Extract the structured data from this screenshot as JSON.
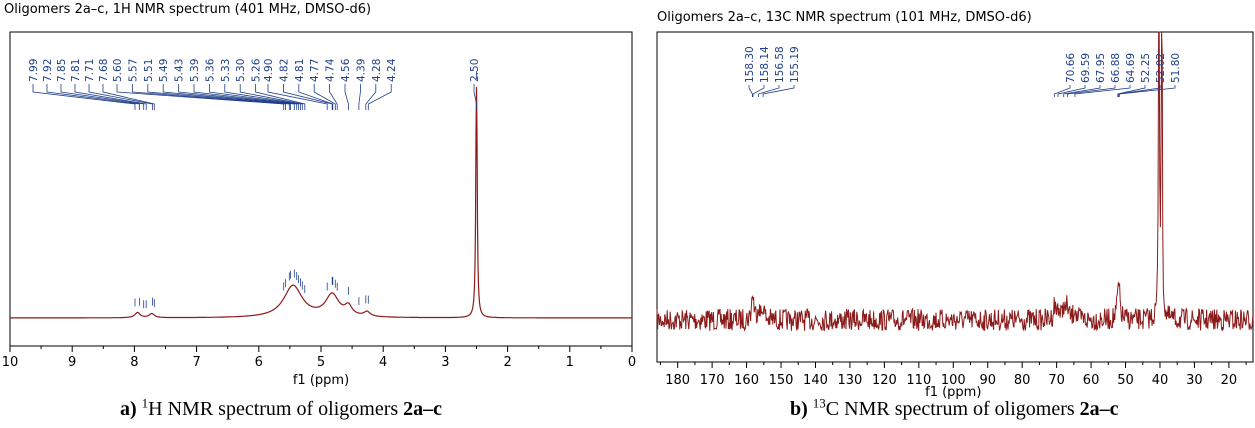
{
  "chart_data": [
    {
      "type": "line",
      "title": "Oligomers 2a–c, 1H NMR spectrum (401 MHz, DMSO-d6)",
      "xlabel": "f1 (ppm)",
      "xlim": [
        10,
        0
      ],
      "x_reversed": true,
      "xticks": [
        10,
        9,
        8,
        7,
        6,
        5,
        4,
        3,
        2,
        1,
        0
      ],
      "xtick_labels": [
        "10",
        "9",
        "8",
        "7",
        "6",
        "5",
        "4",
        "3",
        "2",
        "1",
        "0"
      ],
      "grid": false,
      "line_color": "#8b1a1a",
      "label_color": "#1f3f8a",
      "peak_labels": [
        "7.99",
        "7.92",
        "7.85",
        "7.81",
        "7.71",
        "7.68",
        "5.60",
        "5.57",
        "5.51",
        "5.49",
        "5.43",
        "5.39",
        "5.36",
        "5.33",
        "5.30",
        "5.26",
        "4.90",
        "4.82",
        "4.81",
        "4.77",
        "4.74",
        "4.56",
        "4.39",
        "4.28",
        "4.24",
        "2.50"
      ],
      "peaks": [
        7.99,
        7.92,
        7.85,
        7.81,
        7.71,
        7.68,
        5.6,
        5.57,
        5.51,
        5.49,
        5.43,
        5.39,
        5.36,
        5.33,
        5.3,
        5.26,
        4.9,
        4.82,
        4.81,
        4.77,
        4.74,
        4.56,
        4.39,
        4.28,
        4.24,
        2.5
      ],
      "profile": [
        {
          "center": 7.95,
          "height": 0.09,
          "width": 0.05
        },
        {
          "center": 7.72,
          "height": 0.07,
          "width": 0.05
        },
        {
          "center": 5.45,
          "height": 0.55,
          "width": 0.18
        },
        {
          "center": 4.82,
          "height": 0.38,
          "width": 0.13
        },
        {
          "center": 4.56,
          "height": 0.16,
          "width": 0.07
        },
        {
          "center": 4.26,
          "height": 0.08,
          "width": 0.06
        },
        {
          "center": 2.5,
          "height": 4.6,
          "width": 0.012
        }
      ]
    },
    {
      "type": "line",
      "title": "Oligomers 2a–c, 13C NMR spectrum (101 MHz, DMSO-d6)",
      "xlabel": "f1 (ppm)",
      "xlim": [
        186,
        13
      ],
      "x_reversed": true,
      "xticks": [
        180,
        170,
        160,
        150,
        140,
        130,
        120,
        110,
        100,
        90,
        80,
        70,
        60,
        50,
        40,
        30,
        20
      ],
      "xtick_labels": [
        "180",
        "170",
        "160",
        "150",
        "140",
        "130",
        "120",
        "110",
        "100",
        "90",
        "80",
        "70",
        "60",
        "50",
        "40",
        "30",
        "20"
      ],
      "grid": false,
      "line_color": "#8b1a1a",
      "label_color": "#1f3f8a",
      "peak_labels": [
        "158.30",
        "158.14",
        "156.58",
        "155.19",
        "70.66",
        "69.59",
        "67.95",
        "66.88",
        "64.69",
        "52.25",
        "52.02",
        "51.80"
      ],
      "peaks": [
        158.3,
        158.14,
        156.58,
        155.19,
        70.66,
        69.59,
        67.95,
        66.88,
        64.69,
        52.25,
        52.02,
        51.8
      ],
      "solvent_peaks": [
        40.3,
        39.5
      ]
    }
  ],
  "captions": {
    "h_prefix": "a)",
    "h_sup": "1",
    "h_text": "H NMR spectrum of oligomers",
    "h_bold": "2a–c",
    "c_prefix": "b)",
    "c_sup": "13",
    "c_text": "C NMR spectrum of oligomers",
    "c_bold": "2a–c"
  }
}
